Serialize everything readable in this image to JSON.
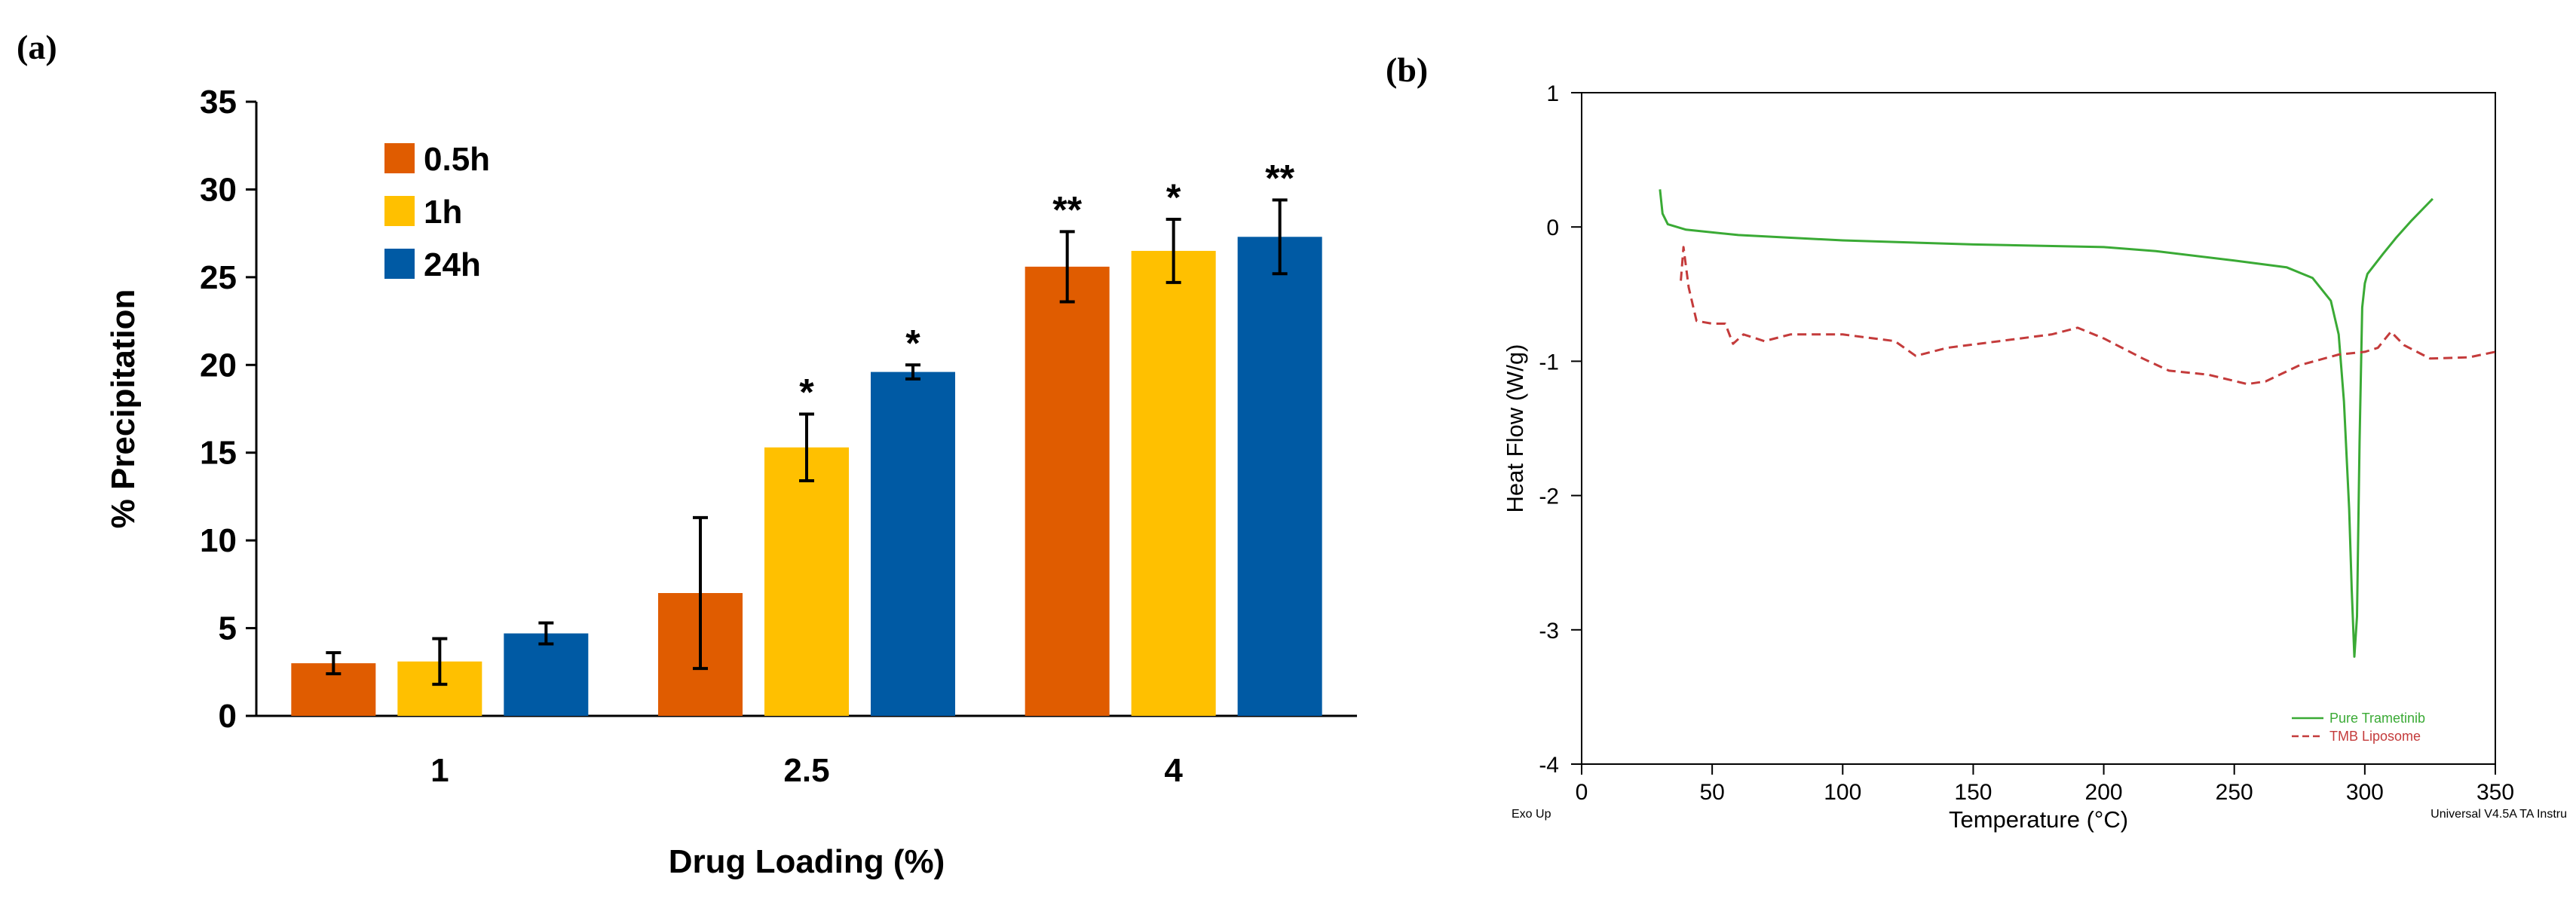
{
  "panel_a_label": "(a)",
  "panel_b_label": "(b)",
  "chart_data": [
    {
      "type": "bar",
      "panel": "(a)",
      "categories": [
        "1",
        "2.5",
        "4"
      ],
      "xlabel": "Drug Loading (%)",
      "ylabel": "% Precipitation",
      "ylim": [
        0,
        35
      ],
      "yticks": [
        "0",
        "5",
        "10",
        "15",
        "20",
        "25",
        "30",
        "35"
      ],
      "legend_position": "top-left",
      "grid": false,
      "series": [
        {
          "name": "0.5h",
          "color": "#e05c00",
          "values": [
            3.0,
            7.0,
            25.6
          ],
          "errors": [
            0.6,
            4.3,
            2.0
          ],
          "annotations": [
            "",
            "",
            "**"
          ]
        },
        {
          "name": "1h",
          "color": "#ffc000",
          "values": [
            3.1,
            15.3,
            26.5
          ],
          "errors": [
            1.3,
            1.9,
            1.8
          ],
          "annotations": [
            "",
            "*",
            "*"
          ]
        },
        {
          "name": "24h",
          "color": "#005aa4",
          "values": [
            4.7,
            19.6,
            27.3
          ],
          "errors": [
            0.6,
            0.4,
            2.1
          ],
          "annotations": [
            "",
            "*",
            "**"
          ]
        }
      ]
    },
    {
      "type": "line",
      "panel": "(b)",
      "xlabel": "Temperature (°C)",
      "ylabel": "Heat Flow (W/g)",
      "xlim": [
        0,
        350
      ],
      "ylim": [
        -4,
        1
      ],
      "xticks": [
        "0",
        "50",
        "100",
        "150",
        "200",
        "250",
        "300",
        "350"
      ],
      "yticks": [
        "1",
        "0",
        "-1",
        "-2",
        "-3",
        "-4"
      ],
      "footer_left": "Exo Up",
      "footer_right": "Universal V4.5A TA Instru",
      "legend_position": "bottom-right",
      "grid": false,
      "series": [
        {
          "name": "Pure Trametinib",
          "color": "#3aaa35",
          "style": "solid",
          "x": [
            30,
            31,
            33,
            40,
            60,
            100,
            150,
            200,
            220,
            250,
            270,
            280,
            287,
            290,
            292,
            294,
            295,
            296,
            297,
            298,
            299,
            300,
            301,
            303,
            307,
            312,
            318,
            323,
            326
          ],
          "y": [
            0.28,
            0.1,
            0.02,
            -0.02,
            -0.06,
            -0.1,
            -0.13,
            -0.15,
            -0.18,
            -0.25,
            -0.3,
            -0.38,
            -0.55,
            -0.8,
            -1.3,
            -2.1,
            -2.7,
            -3.2,
            -2.9,
            -1.6,
            -0.6,
            -0.42,
            -0.35,
            -0.3,
            -0.2,
            -0.08,
            0.05,
            0.15,
            0.21
          ]
        },
        {
          "name": "TMB Liposome",
          "color": "#c43b3b",
          "style": "dashed",
          "x": [
            38,
            39,
            41,
            44,
            50,
            55,
            58,
            62,
            70,
            80,
            100,
            120,
            128,
            140,
            160,
            180,
            190,
            200,
            215,
            225,
            240,
            255,
            262,
            275,
            290,
            300,
            305,
            310,
            315,
            325,
            340,
            350
          ],
          "y": [
            -0.4,
            -0.15,
            -0.45,
            -0.7,
            -0.72,
            -0.72,
            -0.87,
            -0.8,
            -0.85,
            -0.8,
            -0.8,
            -0.85,
            -0.96,
            -0.9,
            -0.85,
            -0.8,
            -0.75,
            -0.83,
            -0.98,
            -1.07,
            -1.1,
            -1.17,
            -1.15,
            -1.03,
            -0.95,
            -0.93,
            -0.9,
            -0.78,
            -0.88,
            -0.98,
            -0.97,
            -0.93
          ]
        }
      ]
    }
  ]
}
